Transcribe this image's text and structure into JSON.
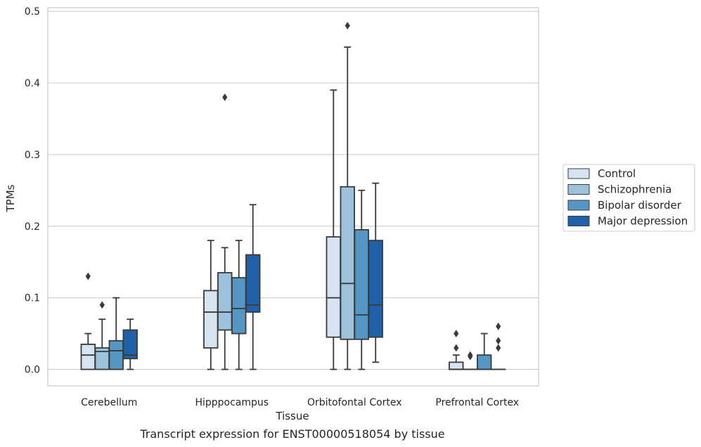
{
  "caption": "Transcript expression for ENST00000518054 by tissue",
  "chart_data": {
    "type": "boxplot",
    "xlabel": "Tissue",
    "ylabel": "TPMs",
    "ylim": [
      -0.023,
      0.505
    ],
    "yticks": [
      "0.0",
      "0.1",
      "0.2",
      "0.3",
      "0.4",
      "0.5"
    ],
    "ytick_values": [
      0.0,
      0.1,
      0.2,
      0.3,
      0.4,
      0.5
    ],
    "grid": "horizontal",
    "legend_position": "right",
    "categories": [
      "Cerebellum",
      "Hipppocampus",
      "Orbitofontal Cortex",
      "Prefrontal Cortex"
    ],
    "series": [
      {
        "name": "Control",
        "color": "#d6e4f1",
        "boxes": [
          {
            "whislo": 0.0,
            "q1": 0.0,
            "med": 0.02,
            "q3": 0.035,
            "whishi": 0.05,
            "fliers": [
              0.13
            ]
          },
          {
            "whislo": 0.0,
            "q1": 0.03,
            "med": 0.08,
            "q3": 0.11,
            "whishi": 0.18,
            "fliers": []
          },
          {
            "whislo": 0.0,
            "q1": 0.045,
            "med": 0.1,
            "q3": 0.185,
            "whishi": 0.39,
            "fliers": []
          },
          {
            "whislo": 0.0,
            "q1": 0.0,
            "med": 0.0,
            "q3": 0.01,
            "whishi": 0.02,
            "fliers": [
              0.03,
              0.05
            ]
          }
        ]
      },
      {
        "name": "Schizophrenia",
        "color": "#9dc3dc",
        "boxes": [
          {
            "whislo": 0.0,
            "q1": 0.0,
            "med": 0.025,
            "q3": 0.03,
            "whishi": 0.07,
            "fliers": [
              0.09
            ]
          },
          {
            "whislo": 0.0,
            "q1": 0.055,
            "med": 0.08,
            "q3": 0.135,
            "whishi": 0.17,
            "fliers": [
              0.38
            ]
          },
          {
            "whislo": 0.0,
            "q1": 0.042,
            "med": 0.12,
            "q3": 0.255,
            "whishi": 0.45,
            "fliers": [
              0.48
            ]
          },
          {
            "whislo": 0.0,
            "q1": 0.0,
            "med": 0.0,
            "q3": 0.0,
            "whishi": 0.0,
            "fliers": [
              0.018,
              0.02
            ]
          }
        ]
      },
      {
        "name": "Bipolar disorder",
        "color": "#5497c5",
        "boxes": [
          {
            "whislo": 0.0,
            "q1": 0.0,
            "med": 0.026,
            "q3": 0.04,
            "whishi": 0.1,
            "fliers": []
          },
          {
            "whislo": 0.0,
            "q1": 0.05,
            "med": 0.085,
            "q3": 0.128,
            "whishi": 0.18,
            "fliers": []
          },
          {
            "whislo": 0.0,
            "q1": 0.042,
            "med": 0.076,
            "q3": 0.195,
            "whishi": 0.25,
            "fliers": []
          },
          {
            "whislo": 0.0,
            "q1": 0.0,
            "med": 0.0,
            "q3": 0.02,
            "whishi": 0.05,
            "fliers": []
          }
        ]
      },
      {
        "name": "Major depression",
        "color": "#2062a9",
        "boxes": [
          {
            "whislo": 0.0,
            "q1": 0.015,
            "med": 0.02,
            "q3": 0.055,
            "whishi": 0.07,
            "fliers": []
          },
          {
            "whislo": 0.0,
            "q1": 0.08,
            "med": 0.09,
            "q3": 0.16,
            "whishi": 0.23,
            "fliers": []
          },
          {
            "whislo": 0.01,
            "q1": 0.045,
            "med": 0.09,
            "q3": 0.18,
            "whishi": 0.26,
            "fliers": []
          },
          {
            "whislo": 0.0,
            "q1": 0.0,
            "med": 0.0,
            "q3": 0.0,
            "whishi": 0.0,
            "fliers": [
              0.03,
              0.04,
              0.06
            ]
          }
        ]
      }
    ]
  }
}
